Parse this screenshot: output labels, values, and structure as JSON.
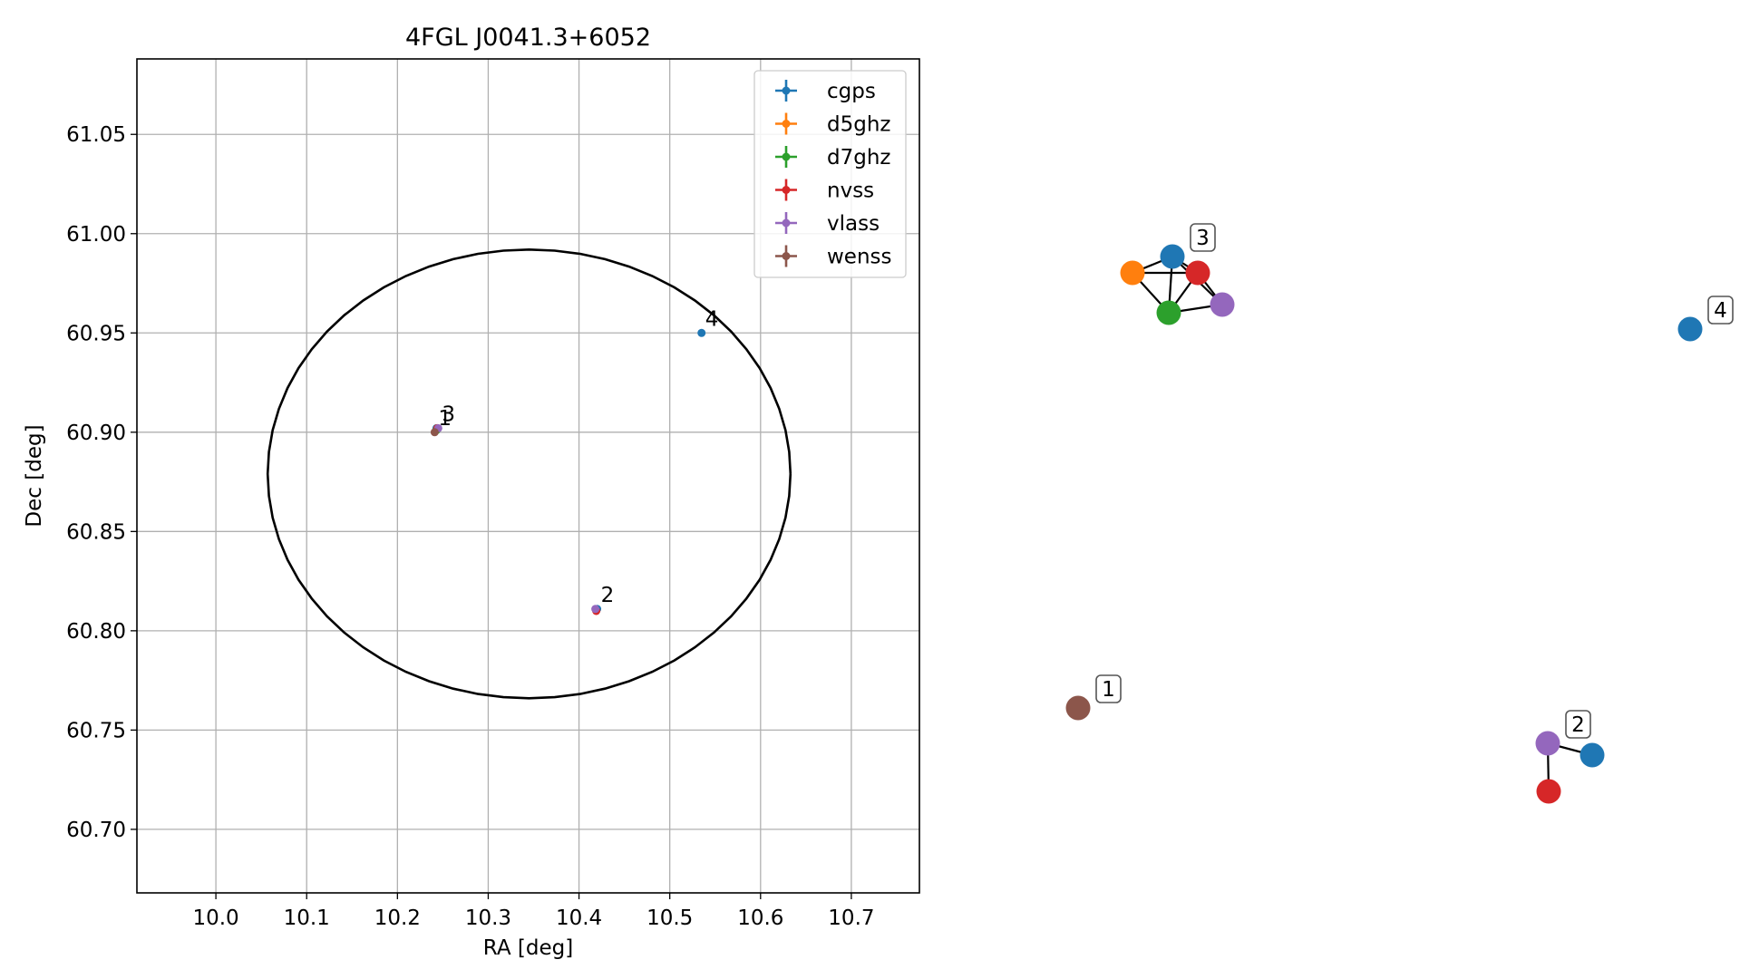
{
  "chart_data": [
    {
      "type": "scatter",
      "title": "4FGL J0041.3+6052",
      "xlabel": "RA [deg]",
      "ylabel": "Dec [deg]",
      "xlim": [
        9.913,
        10.775
      ],
      "ylim": [
        60.668,
        61.088
      ],
      "xticks": [
        10.0,
        10.1,
        10.2,
        10.3,
        10.4,
        10.5,
        10.6,
        10.7
      ],
      "xtick_labels": [
        "10.0",
        "10.1",
        "10.2",
        "10.3",
        "10.4",
        "10.5",
        "10.6",
        "10.7"
      ],
      "yticks": [
        60.7,
        60.75,
        60.8,
        60.85,
        60.9,
        60.95,
        61.0,
        61.05
      ],
      "ytick_labels": [
        "60.70",
        "60.75",
        "60.80",
        "60.85",
        "60.90",
        "60.95",
        "61.00",
        "61.05"
      ],
      "grid": true,
      "legend_position": "top-right",
      "series": [
        {
          "name": "cgps",
          "color": "#1f77b4",
          "points": [
            {
              "x": 10.535,
              "y": 60.95
            },
            {
              "x": 10.42,
              "y": 60.811
            },
            {
              "x": 10.243,
              "y": 60.902
            }
          ]
        },
        {
          "name": "d5ghz",
          "color": "#ff7f0e",
          "points": [
            {
              "x": 10.244,
              "y": 60.902
            }
          ]
        },
        {
          "name": "d7ghz",
          "color": "#2ca02c",
          "points": [
            {
              "x": 10.243,
              "y": 60.901
            }
          ]
        },
        {
          "name": "nvss",
          "color": "#d62728",
          "points": [
            {
              "x": 10.419,
              "y": 60.81
            },
            {
              "x": 10.244,
              "y": 60.902
            }
          ]
        },
        {
          "name": "vlass",
          "color": "#9467bd",
          "points": [
            {
              "x": 10.418,
              "y": 60.811
            },
            {
              "x": 10.245,
              "y": 60.902
            }
          ]
        },
        {
          "name": "wenss",
          "color": "#8c564b",
          "points": [
            {
              "x": 10.241,
              "y": 60.9
            }
          ]
        }
      ],
      "ellipse": {
        "center": [
          10.345,
          60.879
        ],
        "semi_axis_ra": 0.288,
        "semi_axis_dec": 0.113,
        "color": "#000000"
      },
      "annotations": [
        {
          "text": "1",
          "x": 10.241,
          "y": 60.9
        },
        {
          "text": "3",
          "x": 10.245,
          "y": 60.902
        },
        {
          "text": "2",
          "x": 10.42,
          "y": 60.811
        },
        {
          "text": "4",
          "x": 10.535,
          "y": 60.95
        }
      ]
    },
    {
      "type": "graph",
      "nodes": [
        {
          "id": "c3",
          "group": "3",
          "survey": "cgps",
          "color": "#1f77b4"
        },
        {
          "id": "d5",
          "group": "3",
          "survey": "d5ghz",
          "color": "#ff7f0e"
        },
        {
          "id": "d7",
          "group": "3",
          "survey": "d7ghz",
          "color": "#2ca02c"
        },
        {
          "id": "n3",
          "group": "3",
          "survey": "nvss",
          "color": "#d62728"
        },
        {
          "id": "v3",
          "group": "3",
          "survey": "vlass",
          "color": "#9467bd"
        },
        {
          "id": "c4",
          "group": "4",
          "survey": "cgps",
          "color": "#1f77b4"
        },
        {
          "id": "w1",
          "group": "1",
          "survey": "wenss",
          "color": "#8c564b"
        },
        {
          "id": "v2",
          "group": "2",
          "survey": "vlass",
          "color": "#9467bd"
        },
        {
          "id": "c2",
          "group": "2",
          "survey": "cgps",
          "color": "#1f77b4"
        },
        {
          "id": "n2",
          "group": "2",
          "survey": "nvss",
          "color": "#d62728"
        }
      ],
      "edges": [
        [
          "d5",
          "c3"
        ],
        [
          "d5",
          "n3"
        ],
        [
          "d5",
          "d7"
        ],
        [
          "c3",
          "d7"
        ],
        [
          "c3",
          "n3"
        ],
        [
          "c3",
          "v3"
        ],
        [
          "d7",
          "n3"
        ],
        [
          "d7",
          "v3"
        ],
        [
          "n3",
          "v3"
        ],
        [
          "v2",
          "c2"
        ],
        [
          "v2",
          "n2"
        ]
      ],
      "labels": [
        "3",
        "4",
        "1",
        "2"
      ]
    }
  ]
}
